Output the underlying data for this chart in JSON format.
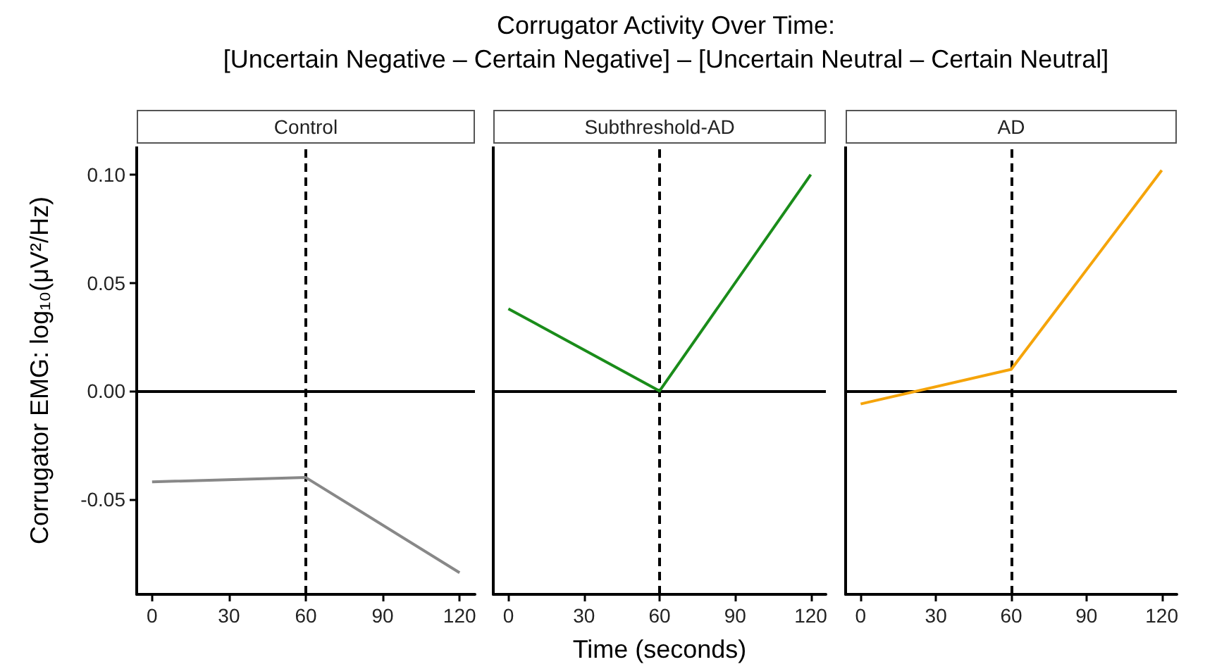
{
  "chart_data": [
    {
      "type": "line",
      "title": "Control",
      "annotations": [
        "Corrugator Activity Over Time:\n[Uncertain Negative – Certain Negative] – [Uncertain Neutral – Certain Neutral]"
      ],
      "ylabel": "Corrugator EMG: log₁₀(μV²/Hz)",
      "x": [
        0,
        60,
        120
      ],
      "series": [
        {
          "color": "#888888",
          "values": [
            -0.042,
            -0.04,
            -0.084
          ]
        }
      ],
      "xlim": [
        -6,
        126
      ],
      "ylim": [
        -0.094,
        0.113
      ],
      "xticks": [
        0,
        30,
        60,
        90,
        120
      ],
      "yticks": [
        -0.05,
        {
          "value": 0,
          "label": "0.00"
        },
        0.05,
        {
          "value": 0.1,
          "label": "0.10"
        }
      ],
      "grid": false,
      "ref_lines": [
        {
          "axis": "y",
          "value": 0,
          "color": "#000000",
          "line_style": "solid"
        },
        {
          "axis": "x",
          "value": 60,
          "color": "#000000",
          "line_style": "dashed"
        }
      ]
    },
    {
      "type": "line",
      "title": "Subthreshold-AD",
      "xlabel": "Time (seconds)",
      "x": [
        0,
        60,
        120
      ],
      "series": [
        {
          "color": "#1a8c1a",
          "values": [
            0.038,
            0.0,
            0.1
          ]
        }
      ],
      "xlim": [
        -6,
        126
      ],
      "ylim": [
        -0.094,
        0.113
      ],
      "xticks": [
        0,
        30,
        60,
        90,
        120
      ],
      "tick_labels": "x",
      "grid": false,
      "ref_lines": [
        {
          "axis": "y",
          "value": 0,
          "color": "#000000",
          "line_style": "solid"
        },
        {
          "axis": "x",
          "value": 60,
          "color": "#000000",
          "line_style": "dashed"
        }
      ]
    },
    {
      "type": "line",
      "title": "AD",
      "x": [
        0,
        60,
        120
      ],
      "series": [
        {
          "color": "#f5a40a",
          "values": [
            -0.006,
            0.01,
            0.102
          ]
        }
      ],
      "xlim": [
        -6,
        126
      ],
      "ylim": [
        -0.094,
        0.113
      ],
      "xticks": [
        0,
        30,
        60,
        90,
        120
      ],
      "tick_labels": "x",
      "grid": false,
      "ref_lines": [
        {
          "axis": "y",
          "value": 0,
          "color": "#000000",
          "line_style": "solid"
        },
        {
          "axis": "x",
          "value": 60,
          "color": "#000000",
          "line_style": "dashed"
        }
      ]
    }
  ]
}
